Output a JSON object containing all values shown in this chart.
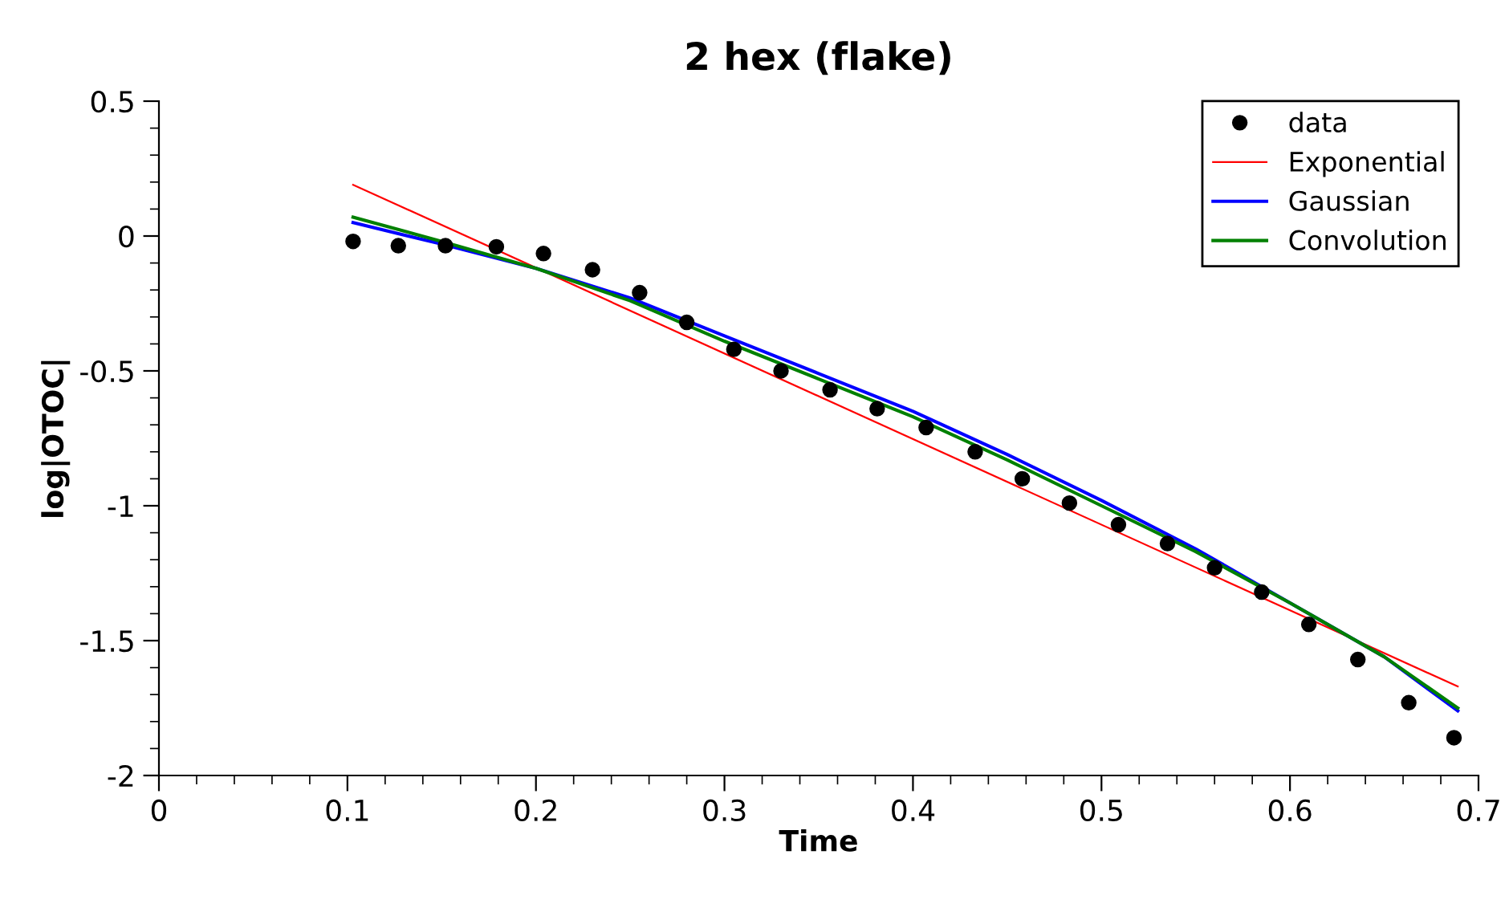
{
  "chart_data": {
    "type": "line",
    "title": "2 hex (flake)",
    "xlabel": "Time",
    "ylabel": "log|OTOC|",
    "xlim": [
      0,
      0.7
    ],
    "xticks": [
      0,
      0.1,
      0.2,
      0.3,
      0.4,
      0.5,
      0.6,
      0.7
    ],
    "ylim": [
      -2,
      0.5
    ],
    "yticks": [
      -2,
      -1.5,
      -1,
      -0.5,
      0,
      0.5
    ],
    "grid": false,
    "legend": "top right",
    "series": [
      {
        "name": "data",
        "type": "scatter",
        "marker": "circle",
        "color": "#000000",
        "x": [
          0.103,
          0.127,
          0.152,
          0.179,
          0.204,
          0.23,
          0.255,
          0.28,
          0.305,
          0.33,
          0.356,
          0.381,
          0.407,
          0.433,
          0.458,
          0.483,
          0.509,
          0.535,
          0.56,
          0.585,
          0.61,
          0.636,
          0.663,
          0.687
        ],
        "values": [
          -0.02,
          -0.036,
          -0.036,
          -0.04,
          -0.065,
          -0.125,
          -0.21,
          -0.32,
          -0.42,
          -0.5,
          -0.57,
          -0.64,
          -0.71,
          -0.8,
          -0.9,
          -0.99,
          -1.07,
          -1.14,
          -1.23,
          -1.32,
          -1.44,
          -1.57,
          -1.73,
          -1.86
        ]
      },
      {
        "name": "Exponential",
        "color": "#ff0000",
        "x": [
          0.103,
          0.689
        ],
        "values": [
          0.19,
          -1.67
        ]
      },
      {
        "name": "Gaussian",
        "color": "#0000ff",
        "x": [
          0.103,
          0.15,
          0.2,
          0.25,
          0.3,
          0.35,
          0.4,
          0.45,
          0.5,
          0.55,
          0.6,
          0.65,
          0.689
        ],
        "values": [
          0.05,
          -0.03,
          -0.12,
          -0.23,
          -0.37,
          -0.51,
          -0.65,
          -0.81,
          -0.98,
          -1.16,
          -1.36,
          -1.56,
          -1.76
        ]
      },
      {
        "name": "Convolution",
        "color": "#008000",
        "x": [
          0.103,
          0.15,
          0.2,
          0.25,
          0.3,
          0.35,
          0.4,
          0.45,
          0.5,
          0.55,
          0.6,
          0.65,
          0.689
        ],
        "values": [
          0.07,
          -0.02,
          -0.12,
          -0.24,
          -0.39,
          -0.53,
          -0.67,
          -0.83,
          -1.0,
          -1.17,
          -1.36,
          -1.56,
          -1.75
        ]
      }
    ]
  }
}
